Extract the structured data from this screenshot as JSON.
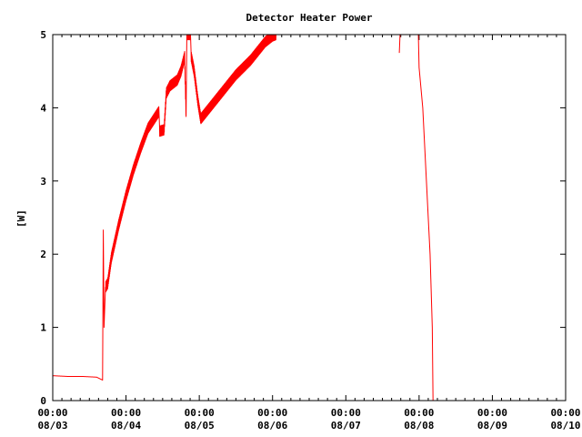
{
  "chart_data": {
    "type": "line",
    "title": "Detector Heater Power",
    "xlabel": "",
    "ylabel": "[W]",
    "ylim": [
      0,
      5
    ],
    "xlim": [
      "08/03 00:00",
      "08/10 00:00"
    ],
    "y_ticks": [
      "0",
      "1",
      "2",
      "3",
      "4",
      "5"
    ],
    "x_ticks": [
      {
        "time": "00:00",
        "date": "08/03"
      },
      {
        "time": "00:00",
        "date": "08/04"
      },
      {
        "time": "00:00",
        "date": "08/05"
      },
      {
        "time": "00:00",
        "date": "08/06"
      },
      {
        "time": "00:00",
        "date": "08/07"
      },
      {
        "time": "00:00",
        "date": "08/08"
      },
      {
        "time": "00:00",
        "date": "08/09"
      },
      {
        "time": "00:00",
        "date": "08/10"
      }
    ],
    "grid": false,
    "series": [
      {
        "color": "#ff0000",
        "x_unit": "days since 08/03 00:00",
        "points": [
          [
            0.0,
            0.34
          ],
          [
            0.2,
            0.33
          ],
          [
            0.4,
            0.33
          ],
          [
            0.6,
            0.32
          ],
          [
            0.68,
            0.28
          ],
          [
            0.69,
            2.33
          ],
          [
            0.7,
            1.0
          ],
          [
            0.72,
            1.55
          ],
          [
            0.75,
            1.6
          ],
          [
            0.8,
            1.95
          ],
          [
            0.9,
            2.4
          ],
          [
            1.0,
            2.8
          ],
          [
            1.1,
            3.15
          ],
          [
            1.2,
            3.45
          ],
          [
            1.3,
            3.72
          ],
          [
            1.45,
            3.95
          ],
          [
            1.46,
            3.68
          ],
          [
            1.52,
            3.7
          ],
          [
            1.55,
            4.2
          ],
          [
            1.6,
            4.3
          ],
          [
            1.7,
            4.38
          ],
          [
            1.75,
            4.5
          ],
          [
            1.8,
            4.7
          ],
          [
            1.82,
            3.88
          ],
          [
            1.83,
            5.0
          ],
          [
            1.88,
            5.0
          ],
          [
            1.89,
            4.7
          ],
          [
            1.93,
            4.5
          ],
          [
            1.98,
            4.1
          ],
          [
            2.02,
            3.85
          ],
          [
            2.1,
            3.95
          ],
          [
            2.3,
            4.2
          ],
          [
            2.5,
            4.45
          ],
          [
            2.7,
            4.65
          ],
          [
            2.9,
            4.9
          ],
          [
            3.0,
            4.98
          ],
          [
            3.05,
            5.0
          ]
        ],
        "points_segment_2": [
          [
            4.73,
            4.75
          ],
          [
            4.74,
            5.0
          ]
        ],
        "points_segment_3": [
          [
            4.99,
            5.0
          ],
          [
            5.0,
            4.55
          ],
          [
            5.05,
            4.0
          ],
          [
            5.1,
            3.0
          ],
          [
            5.15,
            2.0
          ],
          [
            5.18,
            1.0
          ],
          [
            5.19,
            0.0
          ]
        ]
      }
    ]
  }
}
